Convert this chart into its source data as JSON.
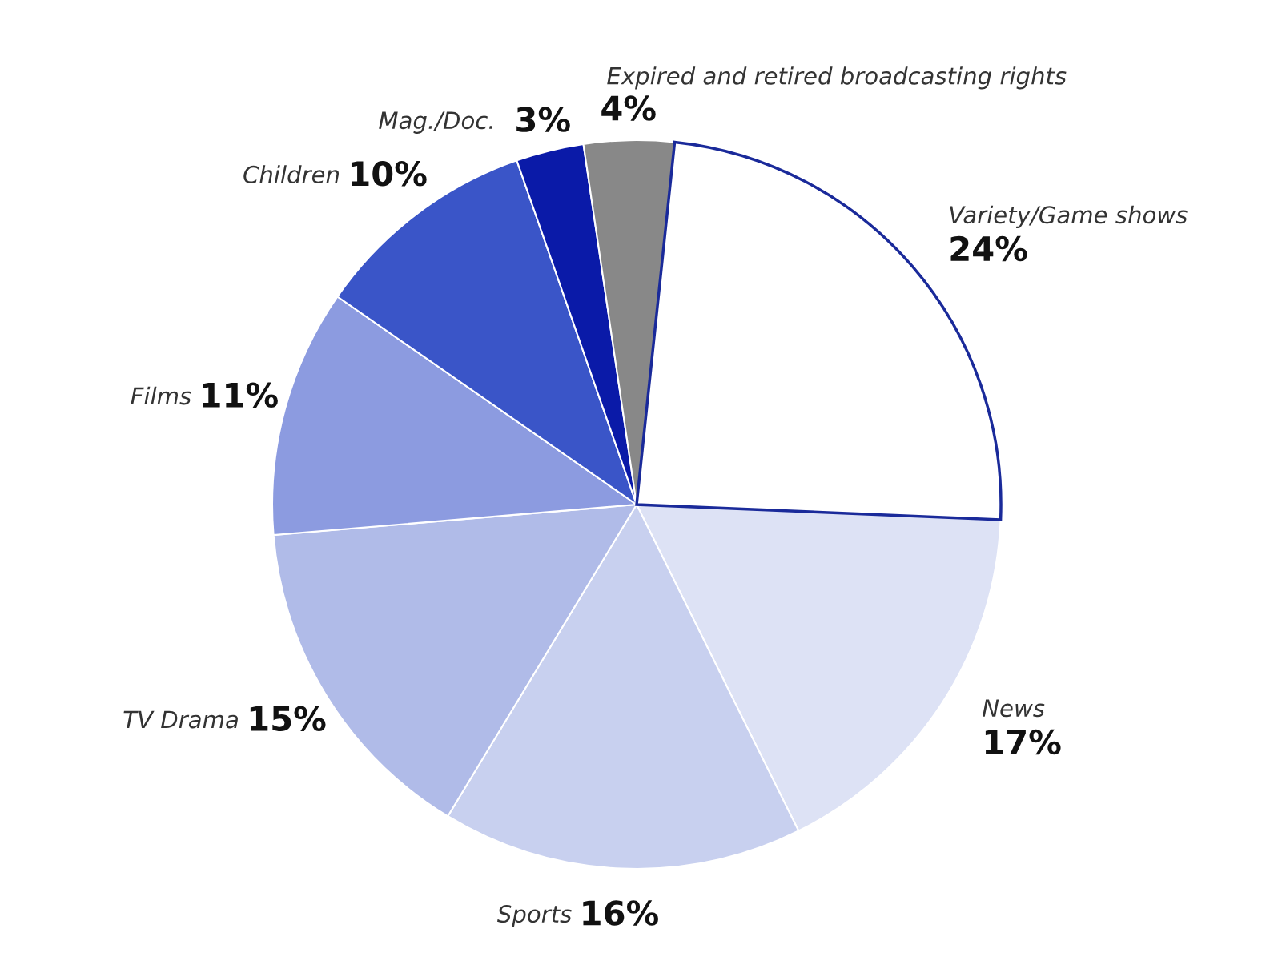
{
  "chart_data": {
    "type": "pie",
    "categories": [
      "Variety/Game shows",
      "News",
      "Sports",
      "TV Drama",
      "Films",
      "Children",
      "Mag./Doc.",
      "Expired and retired broadcasting rights"
    ],
    "values": [
      24,
      17,
      16,
      15,
      11,
      10,
      3,
      4
    ],
    "value_labels": [
      "24%",
      "17%",
      "16%",
      "15%",
      "11%",
      "10%",
      "3%",
      "4%"
    ],
    "colors": [
      "#ffffff",
      "#dde2f5",
      "#c8d0ef",
      "#b0bbe8",
      "#8c9be0",
      "#3a55c8",
      "#0a1aa8",
      "#888888"
    ]
  }
}
